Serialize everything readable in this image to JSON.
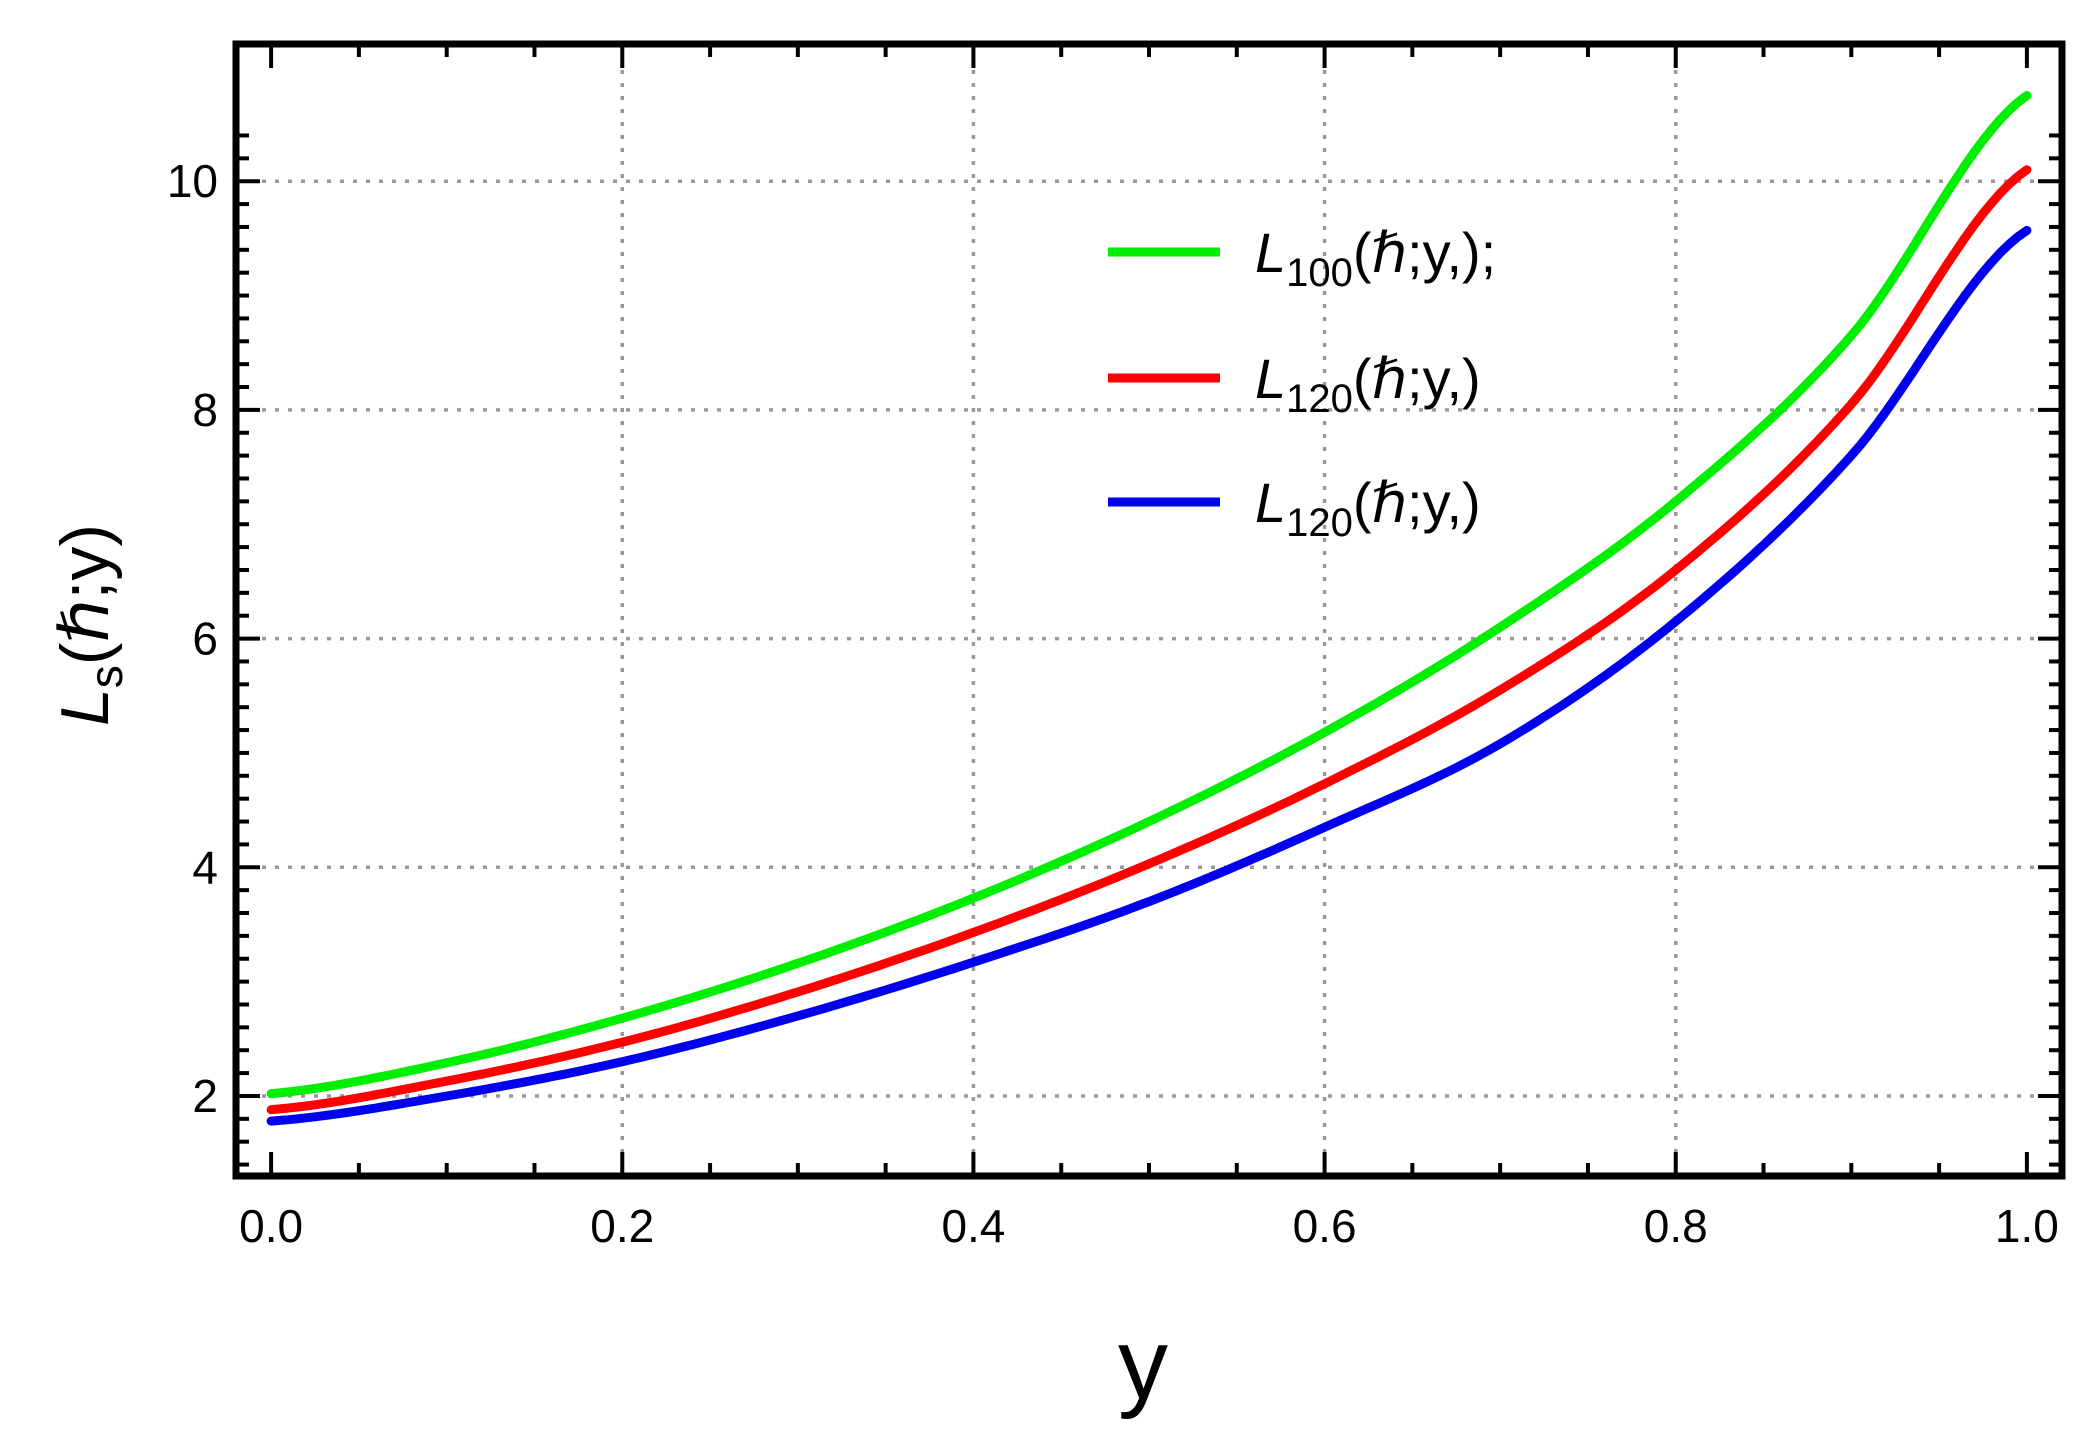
{
  "chart_data": {
    "type": "line",
    "xlabel": "y",
    "ylabel": {
      "main": "L",
      "sub": "s",
      "rest": "(ℏ;y)"
    },
    "xlim": [
      -0.02,
      1.02
    ],
    "ylim": [
      1.3,
      11.2
    ],
    "grid": true,
    "legend_position": "top-center",
    "x_ticks": [
      {
        "value": 0.0,
        "label": "0.0"
      },
      {
        "value": 0.2,
        "label": "0.2"
      },
      {
        "value": 0.4,
        "label": "0.4"
      },
      {
        "value": 0.6,
        "label": "0.6"
      },
      {
        "value": 0.8,
        "label": "0.8"
      },
      {
        "value": 1.0,
        "label": "1.0"
      }
    ],
    "y_ticks": [
      {
        "value": 2,
        "label": "2"
      },
      {
        "value": 4,
        "label": "4"
      },
      {
        "value": 6,
        "label": "6"
      },
      {
        "value": 8,
        "label": "8"
      },
      {
        "value": 10,
        "label": "10"
      }
    ],
    "x": [
      0.0,
      0.1,
      0.2,
      0.3,
      0.4,
      0.5,
      0.6,
      0.7,
      0.8,
      0.9,
      1.0
    ],
    "series": [
      {
        "name": "L100(ℏ;y,);",
        "legend": {
          "main": "L",
          "sub": "100",
          "rest": "(ℏ;y,);"
        },
        "color": "#00ee00",
        "values": [
          2.02,
          2.29,
          2.68,
          3.16,
          3.73,
          4.4,
          5.18,
          6.1,
          7.2,
          8.65,
          10.75
        ]
      },
      {
        "name": "L120(ℏ;y,)",
        "legend": {
          "main": "L",
          "sub": "120",
          "rest": "(ℏ;y,)"
        },
        "color": "#ff0000",
        "values": [
          1.88,
          2.13,
          2.47,
          2.91,
          3.43,
          4.03,
          4.73,
          5.55,
          6.6,
          8.05,
          10.1
        ]
      },
      {
        "name": "L120(ℏ;y,)",
        "legend": {
          "main": "L",
          "sub": "120",
          "rest": "(ℏ;y,)"
        },
        "color": "#0000ee",
        "values": [
          1.78,
          2.0,
          2.3,
          2.7,
          3.17,
          3.7,
          4.35,
          5.08,
          6.15,
          7.6,
          9.57
        ]
      }
    ]
  }
}
